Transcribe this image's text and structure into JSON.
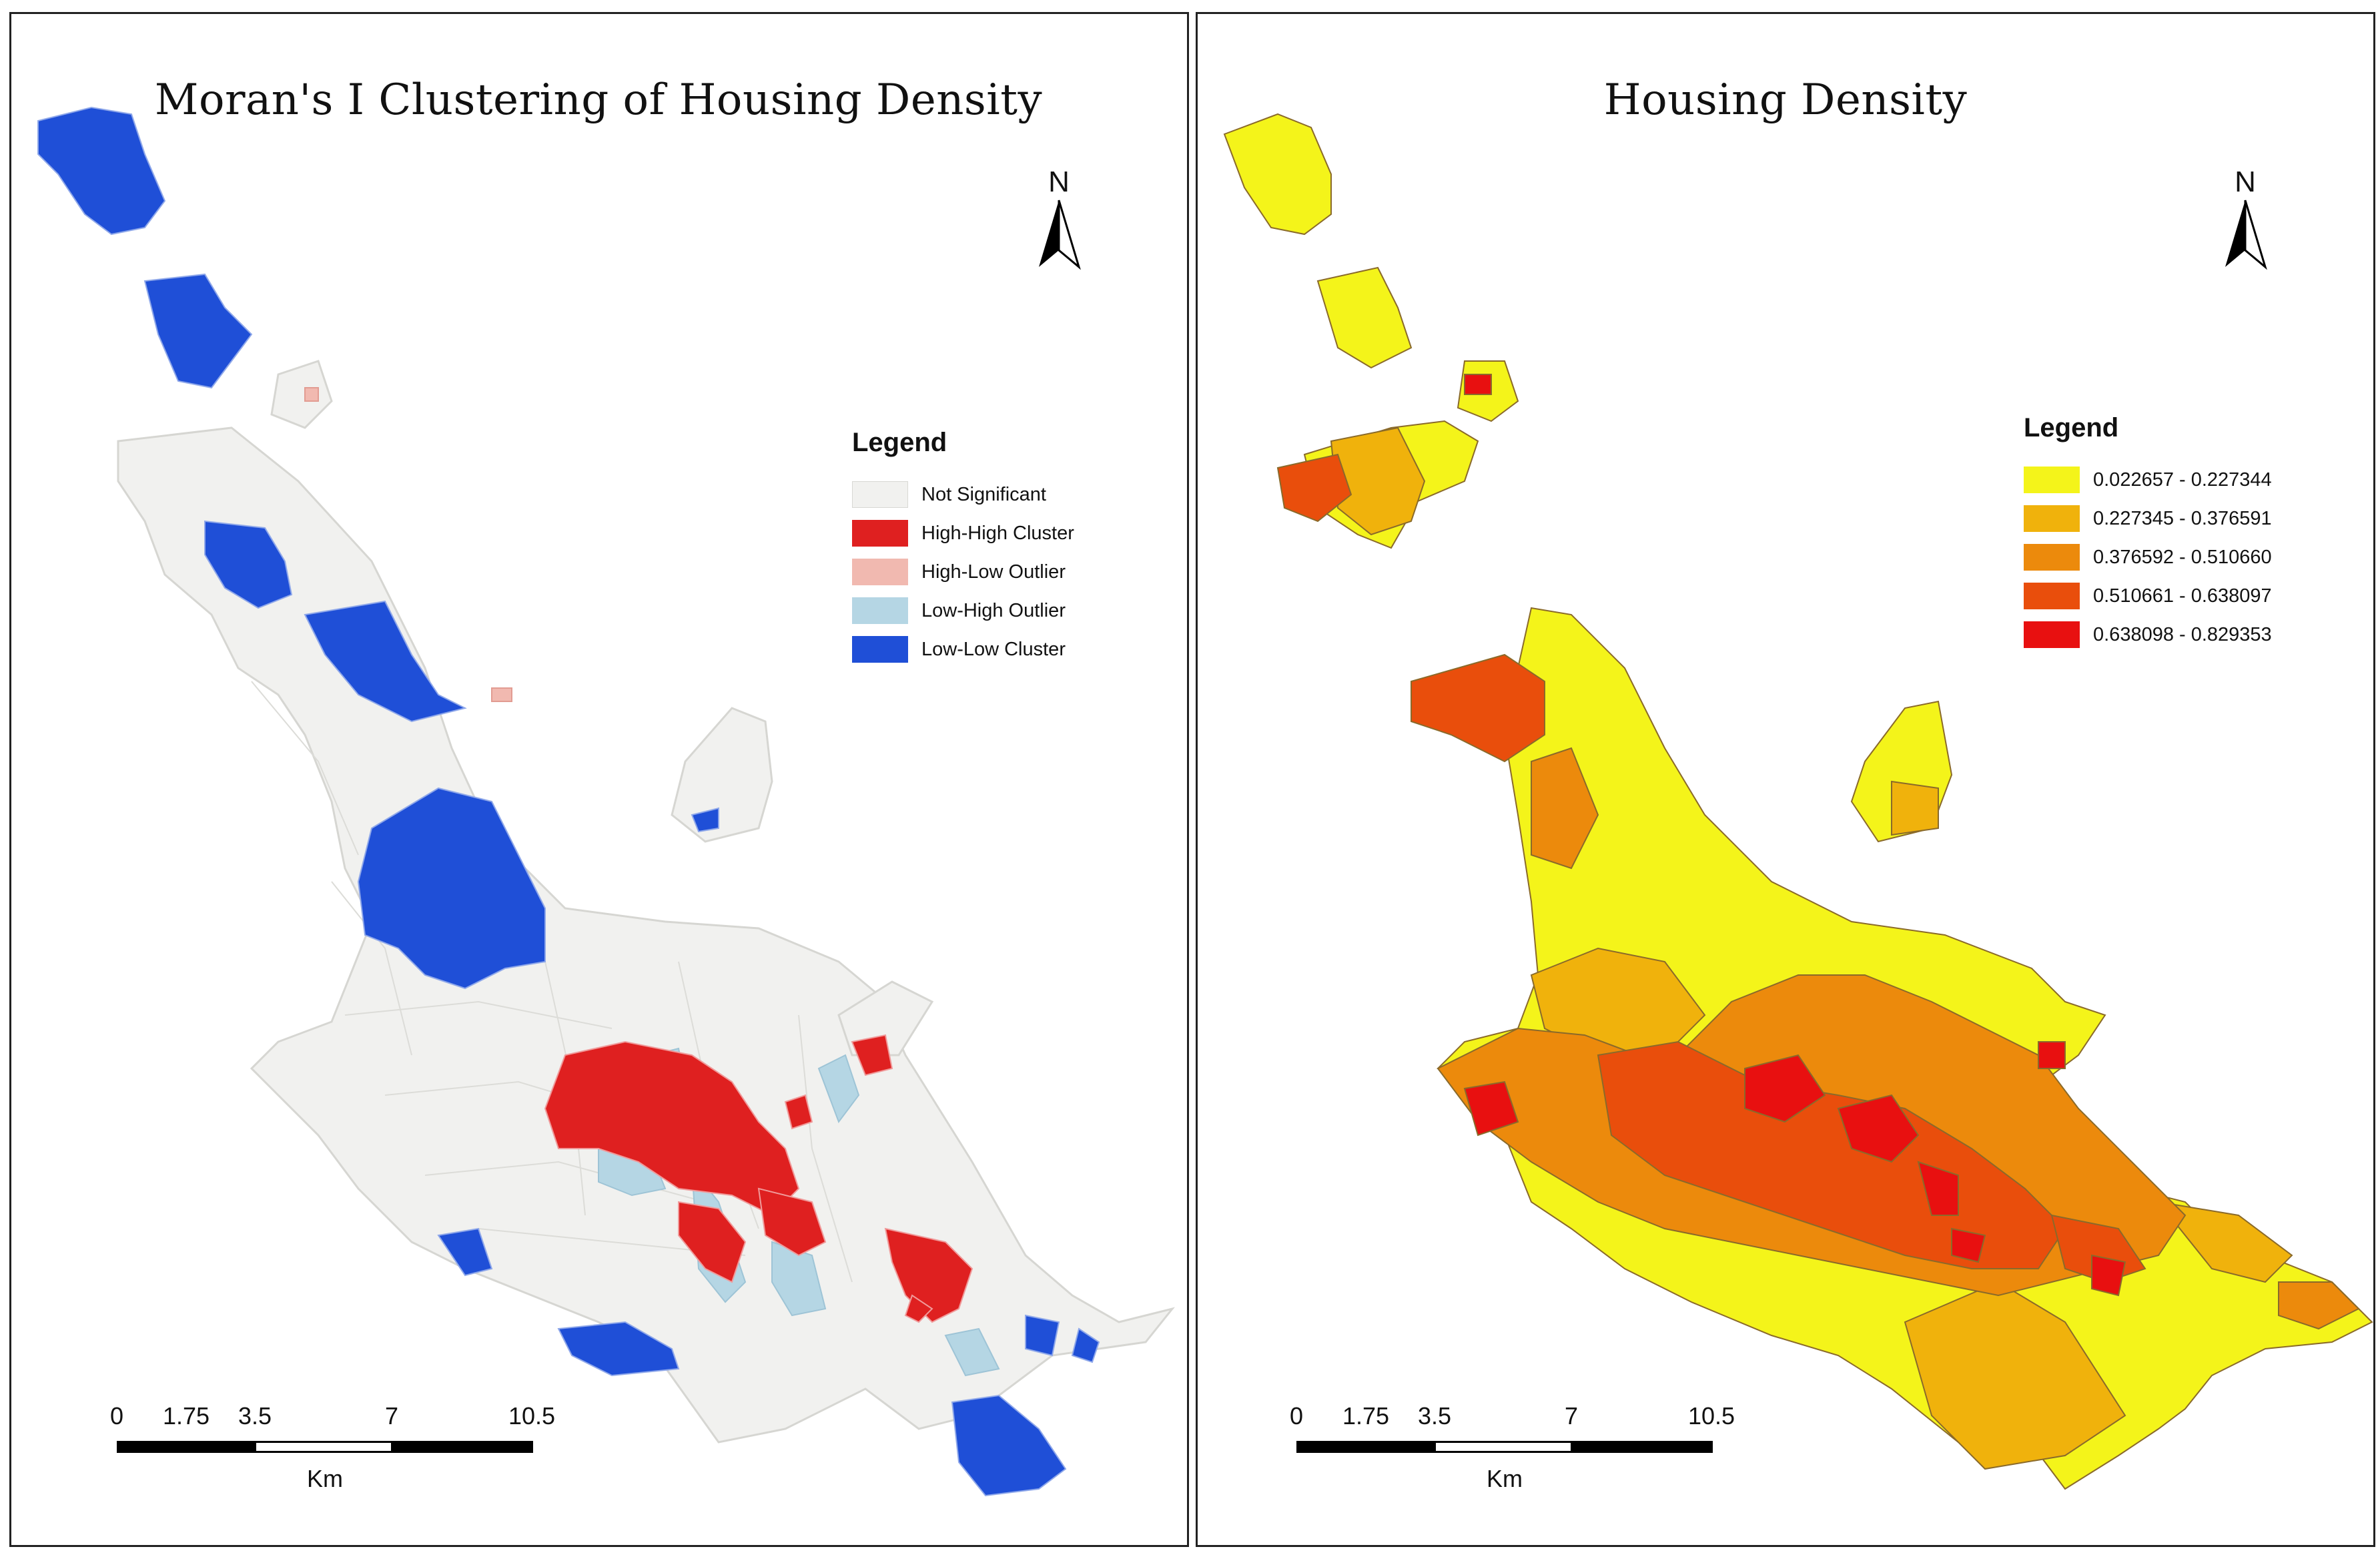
{
  "left_panel": {
    "title": "Moran's I Clustering of Housing Density",
    "north_label": "N",
    "legend_title": "Legend",
    "legend": [
      {
        "label": "Not Significant",
        "color": "#f1f1ef"
      },
      {
        "label": "High-High Cluster",
        "color": "#df2020"
      },
      {
        "label": "High-Low Outlier",
        "color": "#f1b9b0"
      },
      {
        "label": "Low-High Outlier",
        "color": "#b5d6e4"
      },
      {
        "label": "Low-Low Cluster",
        "color": "#1f4fd7"
      }
    ],
    "scale_ticks": [
      "0",
      "1.75",
      "3.5",
      "7",
      "10.5"
    ],
    "scale_unit": "Km"
  },
  "right_panel": {
    "title": "Housing Density",
    "north_label": "N",
    "legend_title": "Legend",
    "legend": [
      {
        "label": "0.022657 - 0.227344",
        "color": "#f4f41a"
      },
      {
        "label": "0.227345 - 0.376591",
        "color": "#f0b20c"
      },
      {
        "label": "0.376592 - 0.510660",
        "color": "#ec8a0c"
      },
      {
        "label": "0.510661 - 0.638097",
        "color": "#e94e0c"
      },
      {
        "label": "0.638098 - 0.829353",
        "color": "#e81010"
      }
    ],
    "scale_ticks": [
      "0",
      "1.75",
      "3.5",
      "7",
      "10.5"
    ],
    "scale_unit": "Km"
  }
}
